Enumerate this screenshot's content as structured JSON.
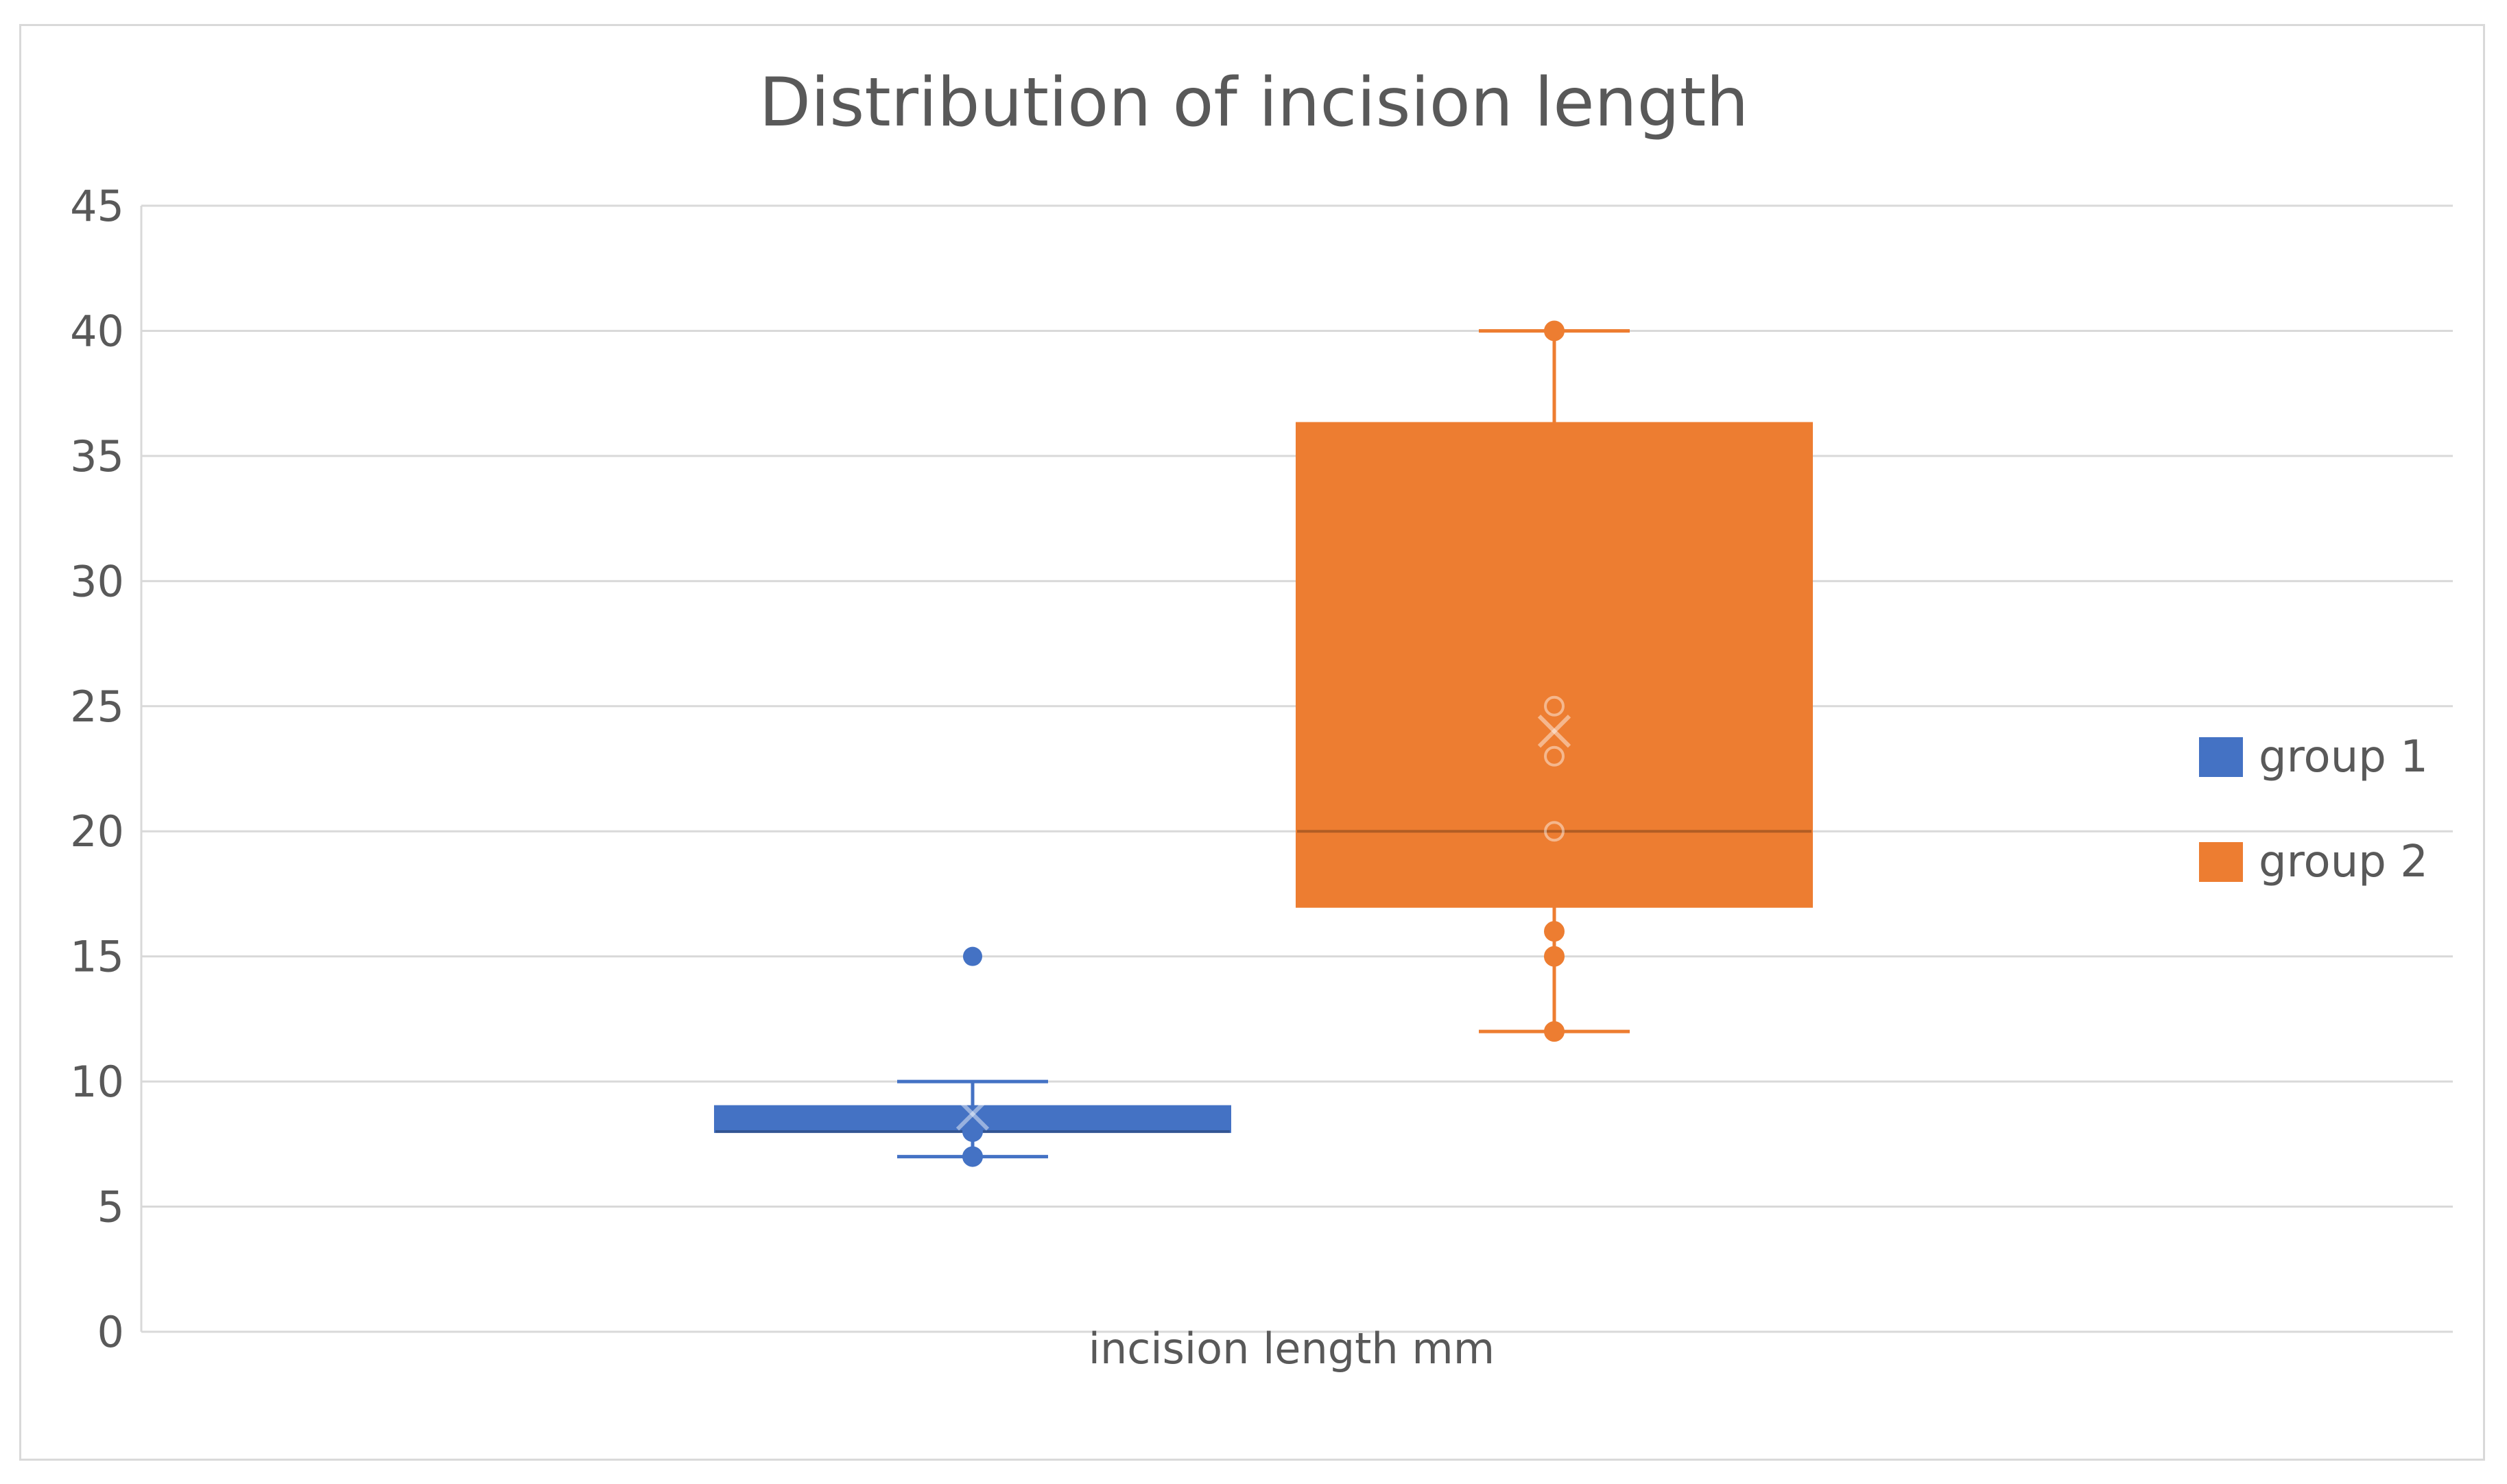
{
  "chart_data": {
    "type": "box",
    "title": "Distribution of incision length",
    "xlabel": "incision length mm",
    "ylabel": "",
    "ylim": [
      0,
      45
    ],
    "yticks": [
      0,
      5,
      10,
      15,
      20,
      25,
      30,
      35,
      40,
      45
    ],
    "grid": true,
    "legend_position": "right",
    "series": [
      {
        "name": "group 1",
        "color": "#4472C4",
        "min": 7,
        "q1": 8,
        "median": 8,
        "q3": 9,
        "max": 10,
        "mean": 8.7,
        "outliers": [
          15
        ],
        "points": [
          7,
          8
        ]
      },
      {
        "name": "group 2",
        "color": "#ED7D31",
        "min": 12,
        "q1": 17,
        "median": 20,
        "q3": 36.3,
        "max": 40,
        "mean": 24,
        "outliers": [],
        "points": [
          12,
          15,
          16,
          20,
          23,
          25,
          40
        ]
      }
    ]
  }
}
